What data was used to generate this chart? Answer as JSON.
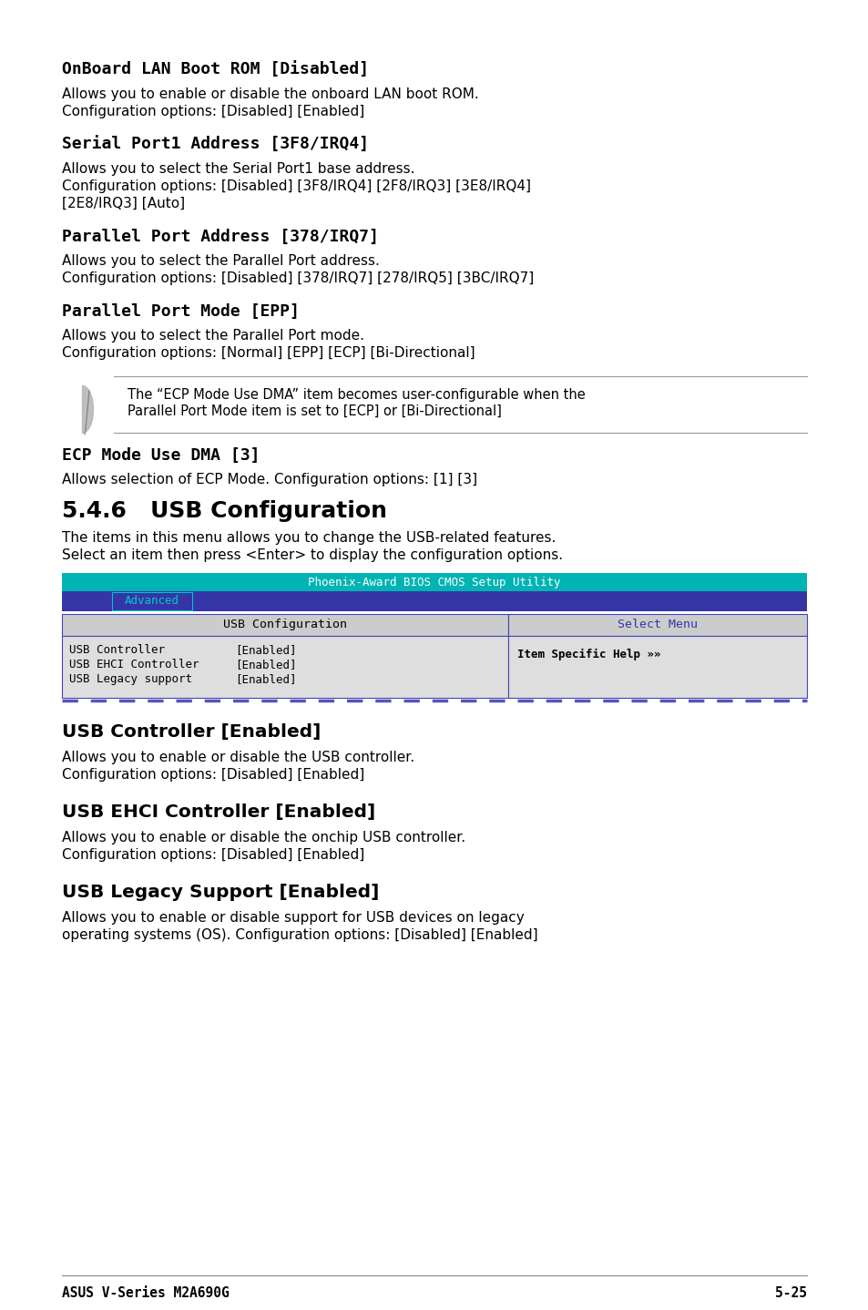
{
  "bg_color": "#ffffff",
  "sections": [
    {
      "heading": "OnBoard LAN Boot ROM [Disabled]",
      "body": [
        "Allows you to enable or disable the onboard LAN boot ROM.",
        "Configuration options: [Disabled] [Enabled]"
      ]
    },
    {
      "heading": "Serial Port1 Address [3F8/IRQ4]",
      "body": [
        "Allows you to select the Serial Port1 base address.",
        "Configuration options: [Disabled] [3F8/IRQ4] [2F8/IRQ3] [3E8/IRQ4]",
        "[2E8/IRQ3] [Auto]"
      ]
    },
    {
      "heading": "Parallel Port Address [378/IRQ7]",
      "body": [
        "Allows you to select the Parallel Port address.",
        "Configuration options: [Disabled] [378/IRQ7] [278/IRQ5] [3BC/IRQ7]"
      ]
    },
    {
      "heading": "Parallel Port Mode [EPP]",
      "body": [
        "Allows you to select the Parallel Port mode.",
        "Configuration options: [Normal] [EPP] [ECP] [Bi-Directional]"
      ]
    }
  ],
  "note_text_line1": "The “ECP Mode Use DMA” item becomes user-configurable when the",
  "note_text_line2": "Parallel Port Mode item is set to [ECP] or [Bi-Directional]",
  "ecp_heading": "ECP Mode Use DMA [3]",
  "ecp_body": "Allows selection of ECP Mode. Configuration options: [1] [3]",
  "usb_section_heading": "5.4.6   USB Configuration",
  "usb_section_body": [
    "The items in this menu allows you to change the USB-related features.",
    "Select an item then press <Enter> to display the configuration options."
  ],
  "bios_title": "Phoenix-Award BIOS CMOS Setup Utility",
  "bios_title_bg": "#00B4B4",
  "bios_title_color": "#ffffff",
  "tab_bg": "#3535A8",
  "tab_text": "Advanced",
  "tab_text_color": "#00CCCC",
  "table_header_bg": "#cccccc",
  "table_header_left": "USB Configuration",
  "table_header_right": "Select Menu",
  "table_header_right_color": "#3535A8",
  "table_body_bg": "#dedede",
  "table_rows": [
    [
      "USB Controller",
      "[Enabled]"
    ],
    [
      "USB EHCI Controller",
      "[Enabled]"
    ],
    [
      "USB Legacy support",
      "[Enabled]"
    ]
  ],
  "table_right_col": "Item Specific Help »»",
  "table_border_color": "#4444BB",
  "table_dashed_color": "#5555BB",
  "usb_sections": [
    {
      "heading": "USB Controller [Enabled]",
      "body": [
        "Allows you to enable or disable the USB controller.",
        "Configuration options: [Disabled] [Enabled]"
      ]
    },
    {
      "heading": "USB EHCI Controller [Enabled]",
      "body": [
        "Allows you to enable or disable the onchip USB controller.",
        "Configuration options: [Disabled] [Enabled]"
      ]
    },
    {
      "heading": "USB Legacy Support [Enabled]",
      "body": [
        "Allows you to enable or disable support for USB devices on legacy",
        "operating systems (OS). Configuration options: [Disabled] [Enabled]"
      ]
    }
  ],
  "footer_left": "ASUS V-Series M2A690G",
  "footer_right": "5-25"
}
